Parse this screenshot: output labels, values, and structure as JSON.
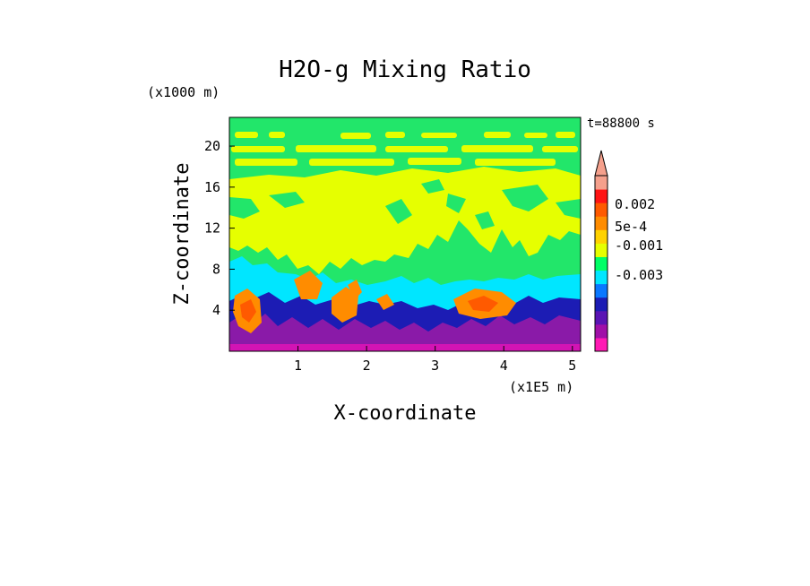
{
  "chart_data": {
    "type": "heatmap",
    "title": "H2O-g Mixing Ratio",
    "xlabel": "X-coordinate",
    "ylabel": "Z-coordinate",
    "x_unit": "(x1E5 m)",
    "y_unit": "(x1000 m)",
    "time_label": "t=88800 s",
    "xlim": [
      0.0,
      5.12
    ],
    "ylim": [
      0.0,
      22.8
    ],
    "x_ticks": [
      "1",
      "2",
      "3",
      "4",
      "5"
    ],
    "y_ticks": [
      "4",
      "8",
      "12",
      "16",
      "20"
    ],
    "colorbar": {
      "labels": [
        "0.002",
        "5e-4",
        "-0.001",
        "-0.003"
      ],
      "colors": [
        "#ff1ab4",
        "#a010a8",
        "#5a14b4",
        "#1c1cb4",
        "#0a78ff",
        "#00e6ff",
        "#00ff66",
        "#e6ff00",
        "#ffd200",
        "#ff8c00",
        "#ff5a00",
        "#ff1414",
        "#f5a08c"
      ]
    },
    "colors": {
      "upper_green": "#22e66a",
      "yellow": "#e6ff00",
      "cyan": "#00e6ff",
      "blue": "#1c1cb4",
      "purple": "#8a1aa8",
      "orange": "#ff8c00",
      "orange_core": "#ff5a00"
    }
  }
}
